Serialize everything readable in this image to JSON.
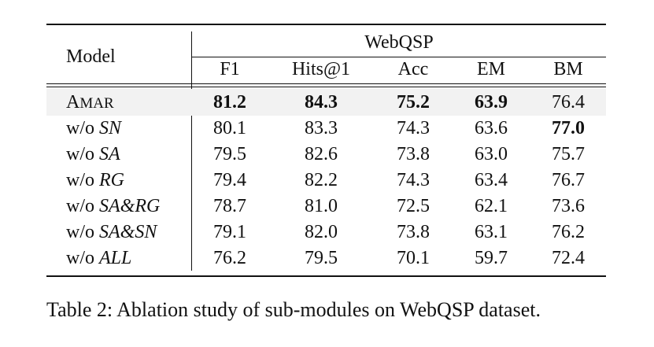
{
  "table": {
    "header": {
      "model_label": "Model",
      "group_label": "WebQSP",
      "columns": [
        "F1",
        "Hits@1",
        "Acc",
        "EM",
        "BM"
      ]
    },
    "main_row": {
      "model_first": "A",
      "model_rest": "MAR",
      "values": [
        "81.2",
        "84.3",
        "75.2",
        "63.9",
        "76.4"
      ],
      "bold": [
        true,
        true,
        true,
        true,
        false
      ]
    },
    "ablation_rows": [
      {
        "prefix": "w/o ",
        "variant": "SN",
        "values": [
          "80.1",
          "83.3",
          "74.3",
          "63.6",
          "77.0"
        ],
        "bold": [
          false,
          false,
          false,
          false,
          true
        ]
      },
      {
        "prefix": "w/o ",
        "variant": "SA",
        "values": [
          "79.5",
          "82.6",
          "73.8",
          "63.0",
          "75.7"
        ],
        "bold": [
          false,
          false,
          false,
          false,
          false
        ]
      },
      {
        "prefix": "w/o ",
        "variant": "RG",
        "values": [
          "79.4",
          "82.2",
          "74.3",
          "63.4",
          "76.7"
        ],
        "bold": [
          false,
          false,
          false,
          false,
          false
        ]
      },
      {
        "prefix": "w/o ",
        "variant": "SA&RG",
        "values": [
          "78.7",
          "81.0",
          "72.5",
          "62.1",
          "73.6"
        ],
        "bold": [
          false,
          false,
          false,
          false,
          false
        ]
      },
      {
        "prefix": "w/o ",
        "variant": "SA&SN",
        "values": [
          "79.1",
          "82.0",
          "73.8",
          "63.1",
          "76.2"
        ],
        "bold": [
          false,
          false,
          false,
          false,
          false
        ]
      },
      {
        "prefix": "w/o ",
        "variant": "ALL",
        "values": [
          "76.2",
          "79.5",
          "70.1",
          "59.7",
          "72.4"
        ],
        "bold": [
          false,
          false,
          false,
          false,
          false
        ]
      }
    ]
  },
  "caption": "Table 2: Ablation study of sub-modules on WebQSP dataset."
}
